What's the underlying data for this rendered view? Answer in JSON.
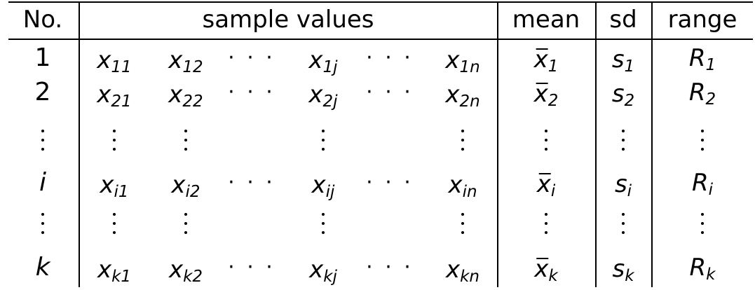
{
  "table": {
    "headers": {
      "no": "No.",
      "samples": "sample values",
      "mean": "mean",
      "sd": "sd",
      "range": "range"
    },
    "rows": [
      {
        "index": "1",
        "index_italic": false,
        "vals": [
          "11",
          "12",
          "cdots",
          "1j",
          "cdots",
          "1n"
        ],
        "mean_sub": "1",
        "sd_sub": "1",
        "range_sub": "1"
      },
      {
        "index": "2",
        "index_italic": false,
        "vals": [
          "21",
          "22",
          "cdots",
          "2j",
          "cdots",
          "2n"
        ],
        "mean_sub": "2",
        "sd_sub": "2",
        "range_sub": "2"
      },
      {
        "vdots": true
      },
      {
        "index": "i",
        "index_italic": true,
        "vals": [
          "i1",
          "i2",
          "cdots",
          "ij",
          "cdots",
          "in"
        ],
        "mean_sub": "i",
        "sd_sub": "i",
        "range_sub": "i"
      },
      {
        "vdots": true
      },
      {
        "index": "k",
        "index_italic": true,
        "vals": [
          "k1",
          "k2",
          "cdots",
          "kj",
          "cdots",
          "kn"
        ],
        "mean_sub": "k",
        "sd_sub": "k",
        "range_sub": "k"
      }
    ],
    "symbols": {
      "value": "x",
      "mean": "x",
      "sd": "s",
      "range": "R",
      "cdots": "· · ·"
    }
  }
}
